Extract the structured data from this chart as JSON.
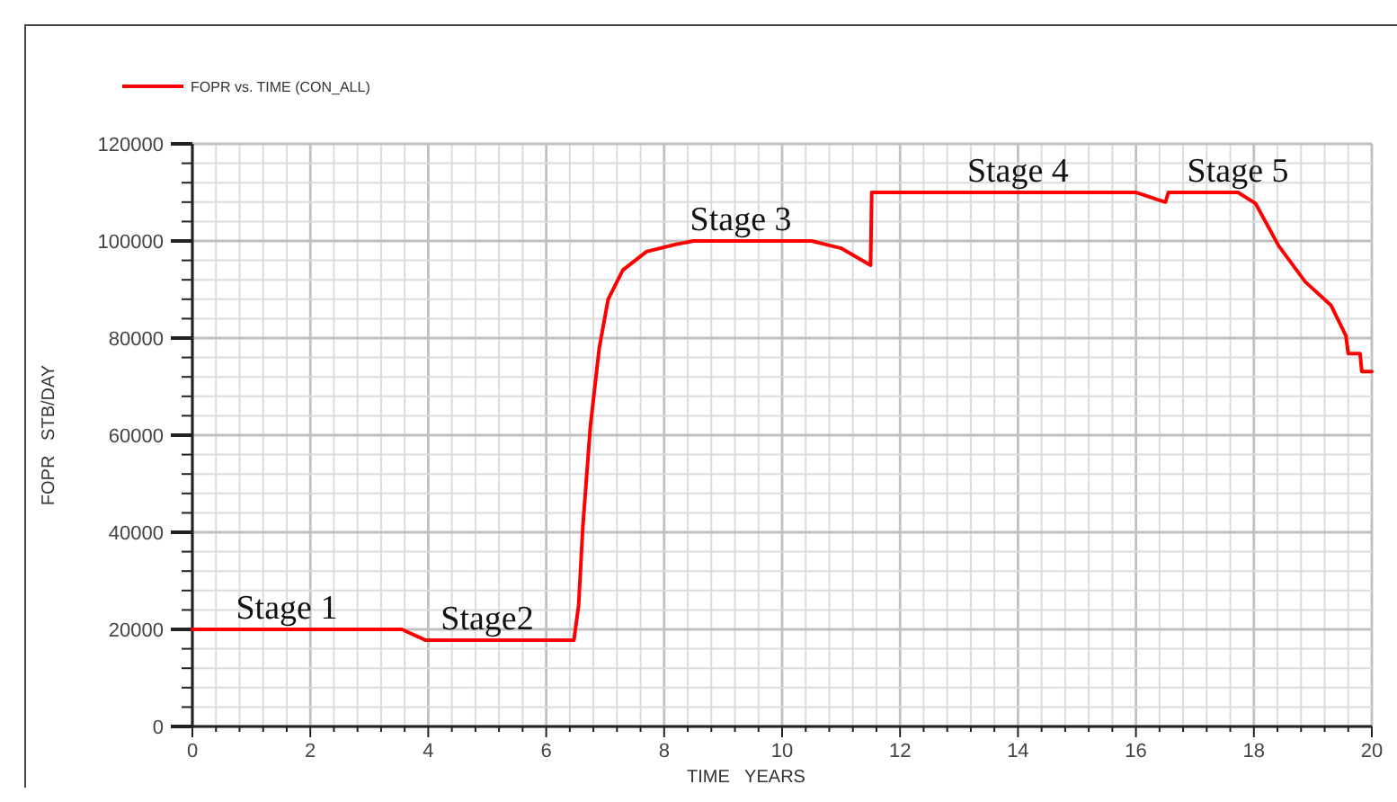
{
  "chart_data": {
    "type": "line",
    "xlabel": "TIME   YEARS",
    "ylabel": "FOPR   STB/DAY",
    "legend": "top left",
    "grid": true,
    "marker": "none",
    "line_style": "solid",
    "xlim": [
      0,
      20
    ],
    "ylim": [
      0,
      120000
    ],
    "xticks": [
      0,
      {
        "value": 0.4,
        "label": null
      },
      {
        "value": 0.8,
        "label": null
      },
      {
        "value": 1.2,
        "label": null
      },
      {
        "value": 1.6,
        "label": null
      },
      2,
      {
        "value": 2.4,
        "label": null
      },
      {
        "value": 2.8,
        "label": null
      },
      {
        "value": 3.2,
        "label": null
      },
      {
        "value": 3.6,
        "label": null
      },
      4,
      {
        "value": 4.4,
        "label": null
      },
      {
        "value": 4.8,
        "label": null
      },
      {
        "value": 5.2,
        "label": null
      },
      {
        "value": 5.6,
        "label": null
      },
      6,
      {
        "value": 6.4,
        "label": null
      },
      {
        "value": 6.8,
        "label": null
      },
      {
        "value": 7.2,
        "label": null
      },
      {
        "value": 7.6,
        "label": null
      },
      8,
      {
        "value": 8.4,
        "label": null
      },
      {
        "value": 8.8,
        "label": null
      },
      {
        "value": 9.2,
        "label": null
      },
      {
        "value": 9.6,
        "label": null
      },
      10,
      {
        "value": 10.4,
        "label": null
      },
      {
        "value": 10.8,
        "label": null
      },
      {
        "value": 11.2,
        "label": null
      },
      {
        "value": 11.6,
        "label": null
      },
      12,
      {
        "value": 12.4,
        "label": null
      },
      {
        "value": 12.8,
        "label": null
      },
      {
        "value": 13.2,
        "label": null
      },
      {
        "value": 13.6,
        "label": null
      },
      14,
      {
        "value": 14.4,
        "label": null
      },
      {
        "value": 14.8,
        "label": null
      },
      {
        "value": 15.2,
        "label": null
      },
      {
        "value": 15.6,
        "label": null
      },
      16,
      {
        "value": 16.4,
        "label": null
      },
      {
        "value": 16.8,
        "label": null
      },
      {
        "value": 17.2,
        "label": null
      },
      {
        "value": 17.6,
        "label": null
      },
      18,
      {
        "value": 18.4,
        "label": null
      },
      {
        "value": 18.8,
        "label": null
      },
      {
        "value": 19.2,
        "label": null
      },
      {
        "value": 19.6,
        "label": null
      },
      20
    ],
    "yticks": [
      0,
      {
        "value": 4000,
        "label": null
      },
      {
        "value": 8000,
        "label": null
      },
      {
        "value": 12000,
        "label": null
      },
      {
        "value": 16000,
        "label": null
      },
      20000,
      {
        "value": 24000,
        "label": null
      },
      {
        "value": 28000,
        "label": null
      },
      {
        "value": 32000,
        "label": null
      },
      {
        "value": 36000,
        "label": null
      },
      40000,
      {
        "value": 44000,
        "label": null
      },
      {
        "value": 48000,
        "label": null
      },
      {
        "value": 52000,
        "label": null
      },
      {
        "value": 56000,
        "label": null
      },
      60000,
      {
        "value": 64000,
        "label": null
      },
      {
        "value": 68000,
        "label": null
      },
      {
        "value": 72000,
        "label": null
      },
      {
        "value": 76000,
        "label": null
      },
      80000,
      {
        "value": 84000,
        "label": null
      },
      {
        "value": 88000,
        "label": null
      },
      {
        "value": 92000,
        "label": null
      },
      {
        "value": 96000,
        "label": null
      },
      100000,
      {
        "value": 104000,
        "label": null
      },
      {
        "value": 108000,
        "label": null
      },
      {
        "value": 112000,
        "label": null
      },
      {
        "value": 116000,
        "label": null
      },
      120000
    ],
    "series": [
      {
        "name": "FOPR vs. TIME (CON_ALL)",
        "color": "#ff0000",
        "x": [
          0,
          3.55,
          3.95,
          6.47,
          6.55,
          6.62,
          6.75,
          6.9,
          7.05,
          7.3,
          7.7,
          8.2,
          8.5,
          10.5,
          11.0,
          11.5,
          11.52,
          16.0,
          16.5,
          16.55,
          17.73,
          18.03,
          18.42,
          18.87,
          19.31,
          19.56,
          19.6,
          19.8,
          19.83,
          20
        ],
        "values": [
          20000,
          20000,
          17800,
          17800,
          25000,
          41000,
          62000,
          78000,
          88000,
          94000,
          97800,
          99300,
          100000,
          100000,
          98500,
          95000,
          110000,
          110000,
          108000,
          110000,
          110000,
          107700,
          99000,
          91600,
          86700,
          80500,
          76800,
          76800,
          73100,
          73100
        ]
      }
    ],
    "annotations": [
      {
        "text": "Stage 1",
        "x": 1.6,
        "y": 20000
      },
      {
        "text": "Stage2",
        "x": 5.0,
        "y": 17800
      },
      {
        "text": "Stage 3",
        "x": 9.3,
        "y": 100000
      },
      {
        "text": "Stage 4",
        "x": 14.0,
        "y": 110000
      },
      {
        "text": "Stage 5",
        "x": 17.73,
        "y": 110000
      }
    ]
  }
}
